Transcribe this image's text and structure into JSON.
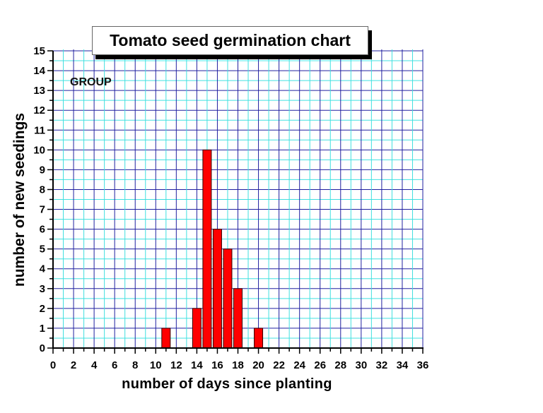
{
  "chart_data": {
    "type": "bar",
    "title": "Tomato seed germination chart",
    "annotation": "GROUP",
    "xlabel": "number of days since planting",
    "ylabel": "number of new seedings",
    "xlim": [
      0,
      36
    ],
    "ylim": [
      0,
      15
    ],
    "x_ticks": [
      0,
      2,
      4,
      6,
      8,
      10,
      12,
      14,
      16,
      18,
      20,
      22,
      24,
      26,
      28,
      30,
      32,
      34,
      36
    ],
    "y_ticks": [
      0,
      1,
      2,
      3,
      4,
      5,
      6,
      7,
      8,
      9,
      10,
      11,
      12,
      13,
      14,
      15
    ],
    "grid": true,
    "legend": null,
    "x": [
      11,
      14,
      15,
      16,
      17,
      18,
      20
    ],
    "values": [
      1,
      2,
      10,
      6,
      5,
      3,
      1
    ],
    "series": [
      {
        "name": "GROUP",
        "x": [
          11,
          14,
          15,
          16,
          17,
          18,
          20
        ],
        "values": [
          1,
          2,
          10,
          6,
          5,
          3,
          1
        ]
      }
    ]
  },
  "colors": {
    "bar_fill": "#ff0000",
    "bar_stroke": "#330000",
    "grid_major": "#2020a0",
    "grid_minor": "#40e0e0",
    "axis": "#000000",
    "title_shadow": "#000000"
  }
}
